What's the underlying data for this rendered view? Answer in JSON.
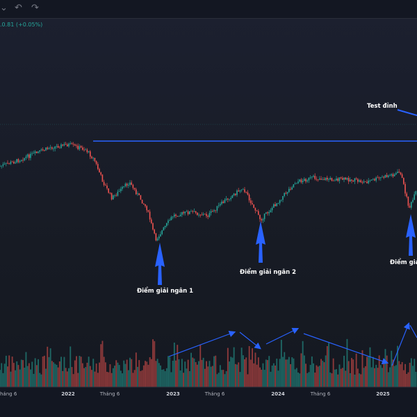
{
  "toolbar": {
    "chevron_glyph": "⌄",
    "undo_glyph": "↶",
    "redo_glyph": "↷"
  },
  "price_change": ".0.81 (+0.05%)",
  "annotations": {
    "test_peak": "Test đỉnh",
    "bottom_1": "Điểm giải ngân 1",
    "bottom_2": "Điểm giải ngân 2",
    "bottom_3": "Điểm giả"
  },
  "colors": {
    "background": "#171b24",
    "up_candle": "#26a69a",
    "down_candle": "#ef5350",
    "annotation_blue": "#2962ff",
    "resistance_line": "#2962ff"
  },
  "chart_data": {
    "type": "candlestick",
    "title": "",
    "xlabel": "",
    "ylabel": "",
    "x_ticks": [
      "Tháng 6",
      "2022",
      "Tháng 6",
      "2023",
      "Tháng 6",
      "2024",
      "Tháng 6",
      "2025"
    ],
    "price_path": {
      "x": [
        "2021-03",
        "2021-05",
        "2021-07",
        "2021-09",
        "2021-11",
        "2022-01",
        "2022-03",
        "2022-04",
        "2022-05",
        "2022-06",
        "2022-08",
        "2022-10",
        "2022-11",
        "2023-01",
        "2023-03",
        "2023-05",
        "2023-07",
        "2023-09",
        "2023-11",
        "2024-01",
        "2024-03",
        "2024-05",
        "2024-07",
        "2024-09",
        "2024-11",
        "2025-01",
        "2025-03",
        "2025-04",
        "2025-05"
      ],
      "y": [
        255,
        240,
        232,
        222,
        212,
        208,
        215,
        230,
        262,
        285,
        262,
        300,
        345,
        310,
        305,
        310,
        288,
        270,
        316,
        290,
        262,
        256,
        258,
        258,
        262,
        255,
        248,
        300,
        270
      ],
      "y_units": "pixel-relative price level (no price axis visible)"
    },
    "resistance_line": {
      "start": "2022-01",
      "end": "2025-06",
      "level_note": "horizontal line at 2022 peak"
    },
    "annotations": [
      {
        "label": "Điểm giải ngân 1",
        "at": "2022-11"
      },
      {
        "label": "Điểm giải ngân 2",
        "at": "2023-11"
      },
      {
        "label": "Điểm giả",
        "at": "2025-04"
      },
      {
        "label": "Test đỉnh",
        "at": "2025-06"
      }
    ],
    "volume_trend_arrows": 6,
    "grid": false,
    "legend": "none"
  }
}
